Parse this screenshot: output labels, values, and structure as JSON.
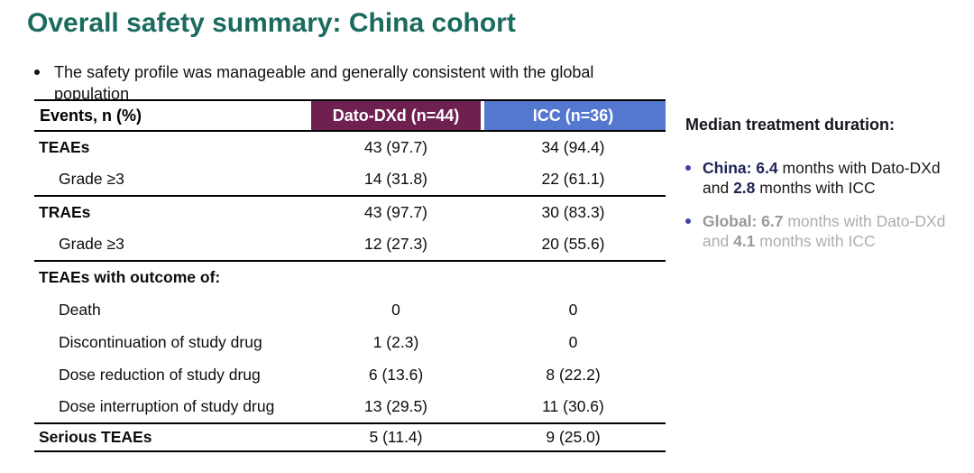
{
  "slide": {
    "title": "Overall safety summary: China cohort",
    "intro_bullet": "The safety profile was manageable and generally consistent with the global population"
  },
  "table": {
    "headers": [
      "Events, n (%)",
      "Dato-DXd (n=44)",
      "ICC (n=36)"
    ],
    "rows": [
      {
        "label": "TEAEs",
        "dato": "43 (97.7)",
        "icc": "34 (94.4)"
      },
      {
        "label": "Grade ≥3",
        "dato": "14 (31.8)",
        "icc": "22 (61.1)"
      },
      {
        "label": "TRAEs",
        "dato": "43 (97.7)",
        "icc": "30 (83.3)"
      },
      {
        "label": "Grade ≥3",
        "dato": "12 (27.3)",
        "icc": "20 (55.6)"
      },
      {
        "label": "TEAEs with outcome of:",
        "dato": "",
        "icc": ""
      },
      {
        "label": "Death",
        "dato": "0",
        "icc": "0"
      },
      {
        "label": "Discontinuation of study drug",
        "dato": "1 (2.3)",
        "icc": "0"
      },
      {
        "label": "Dose reduction of study drug",
        "dato": "6 (13.6)",
        "icc": "8 (22.2)"
      },
      {
        "label": "Dose interruption of study drug",
        "dato": "13 (29.5)",
        "icc": "11 (30.6)"
      },
      {
        "label": "Serious TEAEs",
        "dato": "5 (11.4)",
        "icc": "9 (25.0)"
      }
    ]
  },
  "side": {
    "heading": "Median treatment duration:",
    "bullets": [
      {
        "bold1": "China: 6.4",
        "text1": " months with Dato-DXd",
        "text2": "and ",
        "bold2": "2.8",
        "text3": " months with ICC"
      },
      {
        "bold1": "Global: 6.7",
        "text1": " months with Dato-DXd",
        "text2": "and ",
        "bold2": "4.1",
        "text3": " months with ICC"
      }
    ]
  },
  "colors": {
    "title_teal": "#1A6B5E",
    "dato_header_bg": "#6E2151",
    "icc_header_bg": "#5477CF",
    "header_text": "#FFFFFF",
    "china_bold_text": "#1E2455",
    "global_text_gray": "#ABADB0",
    "side_bullet_dot": "#3D44A5",
    "rule_black": "#000000"
  }
}
